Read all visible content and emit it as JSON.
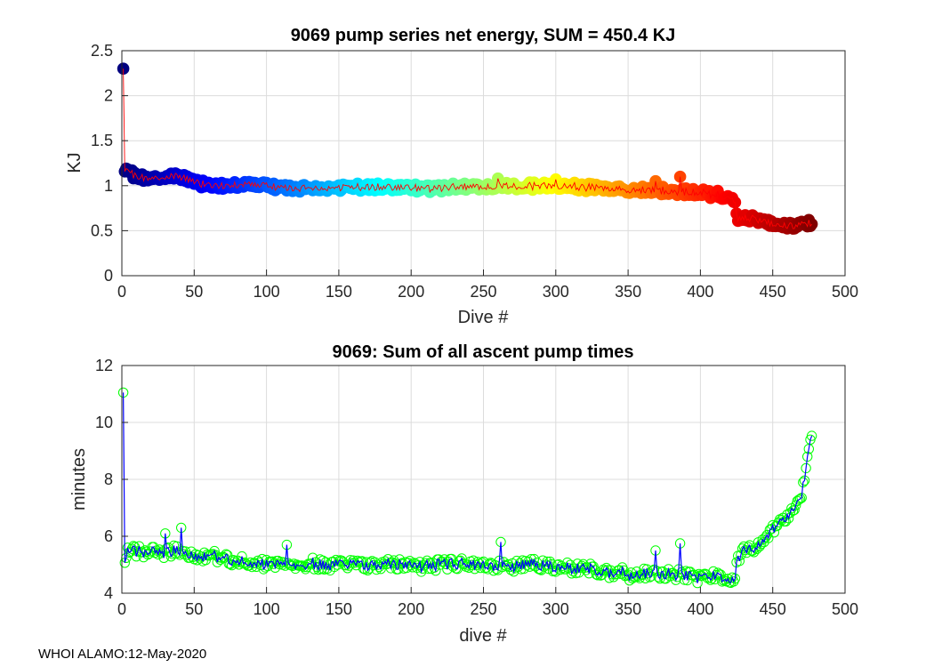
{
  "footer": "WHOI ALAMO:12-May-2020",
  "chart_data": [
    {
      "type": "scatter",
      "title": "9069 pump series net energy, SUM = 450.4 KJ",
      "xlabel": "Dive #",
      "ylabel": "KJ",
      "xlim": [
        0,
        500
      ],
      "ylim": [
        0,
        2.5
      ],
      "xticks": [
        "0",
        "50",
        "100",
        "150",
        "200",
        "250",
        "300",
        "350",
        "400",
        "450",
        "500"
      ],
      "yticks": [
        "0",
        "0.5",
        "1",
        "1.5",
        "2",
        "2.5"
      ],
      "grid": true,
      "marker_color": "jet colormap by dive #",
      "line_color": "#ff0000",
      "segments": [
        {
          "x": [
            1,
            2,
            5,
            10,
            20,
            30,
            40,
            50,
            60,
            80,
            100,
            120,
            150,
            175,
            200,
            225,
            250,
            275,
            300,
            325,
            350,
            375,
            400,
            420,
            424
          ],
          "y": [
            2.3,
            1.2,
            1.15,
            1.1,
            1.08,
            1.1,
            1.1,
            1.05,
            1.0,
            1.0,
            1.0,
            0.97,
            0.98,
            0.98,
            0.97,
            0.98,
            1.0,
            1.0,
            1.0,
            0.98,
            0.95,
            0.95,
            0.92,
            0.88,
            0.82
          ]
        },
        {
          "x": [
            425,
            430,
            440,
            450,
            460,
            470,
            477
          ],
          "y": [
            0.65,
            0.64,
            0.62,
            0.58,
            0.55,
            0.56,
            0.6
          ]
        }
      ],
      "noise": 0.05,
      "spikes": [
        {
          "x": 260,
          "y": 1.08
        },
        {
          "x": 300,
          "y": 1.07
        },
        {
          "x": 369,
          "y": 1.05
        },
        {
          "x": 386,
          "y": 1.1
        }
      ]
    },
    {
      "type": "scatter",
      "title": "9069: Sum of all ascent pump times",
      "xlabel": "dive #",
      "ylabel": "minutes",
      "xlim": [
        0,
        500
      ],
      "ylim": [
        4,
        12
      ],
      "xticks": [
        "0",
        "50",
        "100",
        "150",
        "200",
        "250",
        "300",
        "350",
        "400",
        "450",
        "500"
      ],
      "yticks": [
        "4",
        "6",
        "8",
        "10",
        "12"
      ],
      "grid": true,
      "marker_color": "#00ff00",
      "line_color": "#0000ff",
      "segments": [
        {
          "x": [
            1,
            2,
            5,
            10,
            20,
            40,
            60,
            80,
            100,
            150,
            200,
            250,
            300,
            350,
            380,
            400,
            424
          ],
          "y": [
            11.05,
            5.3,
            5.4,
            5.5,
            5.4,
            5.45,
            5.3,
            5.1,
            5.05,
            5.0,
            5.0,
            5.0,
            4.95,
            4.65,
            4.7,
            4.55,
            4.5
          ]
        },
        {
          "x": [
            425,
            430,
            440,
            450,
            460,
            470,
            477
          ],
          "y": [
            5.2,
            5.5,
            5.7,
            6.2,
            6.7,
            7.4,
            9.5
          ]
        }
      ],
      "noise": 0.25,
      "spikes": [
        {
          "x": 30,
          "y": 6.1
        },
        {
          "x": 41,
          "y": 6.3
        },
        {
          "x": 114,
          "y": 5.7
        },
        {
          "x": 262,
          "y": 5.8
        },
        {
          "x": 369,
          "y": 5.5
        },
        {
          "x": 386,
          "y": 5.75
        },
        {
          "x": 474,
          "y": 8.8
        }
      ]
    }
  ]
}
